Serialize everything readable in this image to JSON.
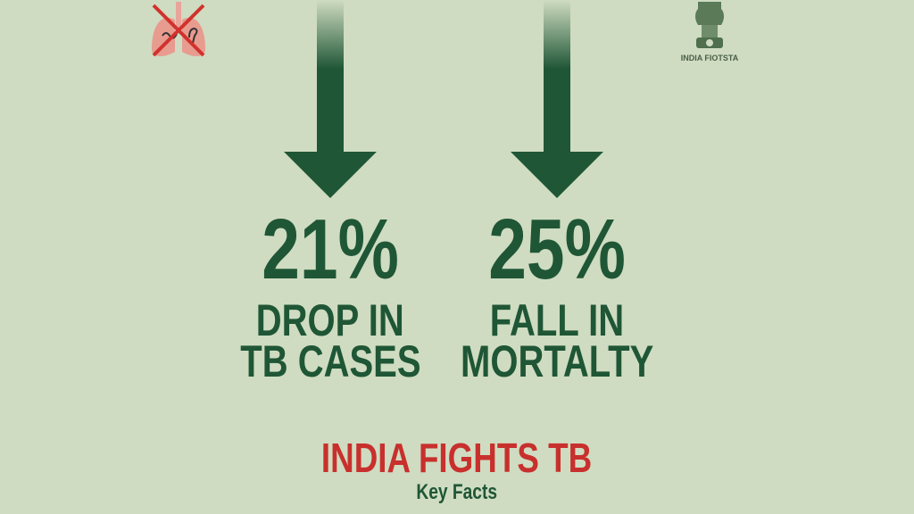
{
  "colors": {
    "background": "#cfdcc1",
    "green": "#1f5636",
    "red": "#c8302d"
  },
  "icons": {
    "left": "crossed-out-lungs-icon",
    "right": "national-emblem-icon"
  },
  "emblem_caption": "INDIA FIOTSTA",
  "stats": [
    {
      "value": "21%",
      "line1": "DROP IN",
      "line2": "TB CASES",
      "icon": "down-arrow-icon"
    },
    {
      "value": "25%",
      "line1": "FALL IN",
      "line2": "MORTALTY",
      "icon": "down-arrow-icon"
    }
  ],
  "title": "INDIA FIGHTS TB",
  "subtitle": "Key Facts"
}
